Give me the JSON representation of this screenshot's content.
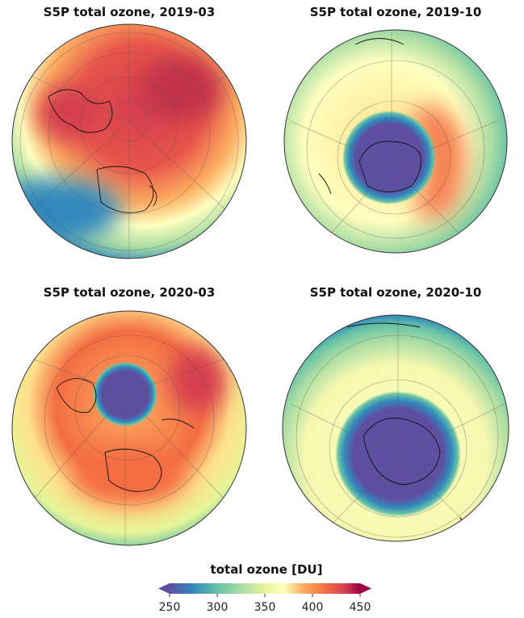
{
  "panels": [
    {
      "title": "S5P total ozone, 2019-03"
    },
    {
      "title": "S5P total ozone, 2019-10"
    },
    {
      "title": "S5P total ozone, 2020-03"
    },
    {
      "title": "S5P total ozone, 2020-10"
    }
  ],
  "colorbar": {
    "label": "total ozone [DU]",
    "lim": [
      250,
      450
    ],
    "ticks": [
      250,
      300,
      350,
      400,
      450
    ]
  }
}
